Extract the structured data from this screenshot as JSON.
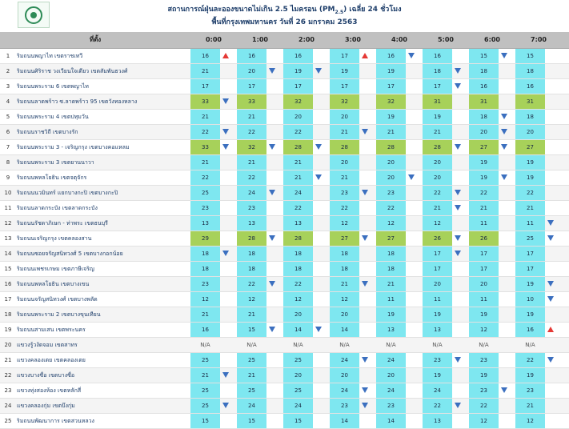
{
  "header": {
    "title_main": "สถานการณ์ฝุ่นละอองขนาดไม่เกิน 2.5 ไมครอน (PM",
    "title_sub": "2.5",
    "title_end": ") เฉลี่ย 24 ชั่วโมง",
    "subtitle": "พื้นที่กรุงเทพมหานคร วันที่ 26 มกราคม 2563",
    "logo_icon": "bma-seal-icon"
  },
  "table": {
    "place_header": "ที่ตั้ง",
    "hours": [
      "0:00",
      "1:00",
      "2:00",
      "3:00",
      "4:00",
      "5:00",
      "6:00",
      "7:00"
    ],
    "colors": {
      "cyan": "#7ee7f0",
      "green": "#a7d15a",
      "down_arrow": "#3b6fbf",
      "up_arrow": "#e53935"
    },
    "rows": [
      {
        "num": "1",
        "place": "ริมถนนพญาไท เขตราชเทวี",
        "cells": [
          {
            "v": "16",
            "a": "up"
          },
          {
            "v": "16",
            "a": ""
          },
          {
            "v": "16",
            "a": ""
          },
          {
            "v": "17",
            "a": "up"
          },
          {
            "v": "16",
            "a": "down"
          },
          {
            "v": "16",
            "a": ""
          },
          {
            "v": "15",
            "a": "down"
          },
          {
            "v": "15",
            "a": ""
          }
        ]
      },
      {
        "num": "2",
        "place": "ริมถนนศิริราช วงเวียนใจเดียว เขตสัมพันธวงศ์",
        "cells": [
          {
            "v": "21",
            "a": ""
          },
          {
            "v": "20",
            "a": "down"
          },
          {
            "v": "19",
            "a": "down"
          },
          {
            "v": "19",
            "a": ""
          },
          {
            "v": "19",
            "a": ""
          },
          {
            "v": "18",
            "a": "down"
          },
          {
            "v": "18",
            "a": ""
          },
          {
            "v": "18",
            "a": ""
          }
        ]
      },
      {
        "num": "3",
        "place": "ริมถนนพระราม 6 เขตพญาไท",
        "cells": [
          {
            "v": "17",
            "a": ""
          },
          {
            "v": "17",
            "a": ""
          },
          {
            "v": "17",
            "a": ""
          },
          {
            "v": "17",
            "a": ""
          },
          {
            "v": "17",
            "a": ""
          },
          {
            "v": "17",
            "a": "down"
          },
          {
            "v": "16",
            "a": ""
          },
          {
            "v": "16",
            "a": ""
          }
        ]
      },
      {
        "num": "4",
        "place": "ริมถนนลาดพร้าว ซ.ลาดพร้าว 95 เขตวังทองหลาง",
        "cells": [
          {
            "v": "33",
            "a": "down"
          },
          {
            "v": "33",
            "a": ""
          },
          {
            "v": "32",
            "a": ""
          },
          {
            "v": "32",
            "a": ""
          },
          {
            "v": "32",
            "a": ""
          },
          {
            "v": "31",
            "a": ""
          },
          {
            "v": "31",
            "a": ""
          },
          {
            "v": "31",
            "a": ""
          }
        ]
      },
      {
        "num": "5",
        "place": "ริมถนนพระราม 4 เขตปทุมวัน",
        "cells": [
          {
            "v": "21",
            "a": ""
          },
          {
            "v": "21",
            "a": ""
          },
          {
            "v": "20",
            "a": ""
          },
          {
            "v": "20",
            "a": ""
          },
          {
            "v": "19",
            "a": ""
          },
          {
            "v": "19",
            "a": ""
          },
          {
            "v": "18",
            "a": "down"
          },
          {
            "v": "18",
            "a": ""
          }
        ]
      },
      {
        "num": "6",
        "place": "ริมถนนราชวิถี เขตบางรัก",
        "cells": [
          {
            "v": "22",
            "a": "down"
          },
          {
            "v": "22",
            "a": ""
          },
          {
            "v": "22",
            "a": ""
          },
          {
            "v": "21",
            "a": "down"
          },
          {
            "v": "21",
            "a": ""
          },
          {
            "v": "21",
            "a": ""
          },
          {
            "v": "20",
            "a": "down"
          },
          {
            "v": "20",
            "a": ""
          }
        ]
      },
      {
        "num": "7",
        "place": "ริมถนนพระราม 3 - เจริญกรุง เขตบางคอแหลม",
        "cells": [
          {
            "v": "33",
            "a": "down"
          },
          {
            "v": "32",
            "a": "down"
          },
          {
            "v": "28",
            "a": "down"
          },
          {
            "v": "28",
            "a": ""
          },
          {
            "v": "28",
            "a": ""
          },
          {
            "v": "28",
            "a": "down"
          },
          {
            "v": "27",
            "a": "down"
          },
          {
            "v": "27",
            "a": ""
          }
        ]
      },
      {
        "num": "8",
        "place": "ริมถนนพระราม 3 เขตยานนาวา",
        "cells": [
          {
            "v": "21",
            "a": ""
          },
          {
            "v": "21",
            "a": ""
          },
          {
            "v": "21",
            "a": ""
          },
          {
            "v": "20",
            "a": ""
          },
          {
            "v": "20",
            "a": ""
          },
          {
            "v": "20",
            "a": ""
          },
          {
            "v": "19",
            "a": ""
          },
          {
            "v": "19",
            "a": ""
          }
        ]
      },
      {
        "num": "9",
        "place": "ริมถนนพหลโยธิน เขตจตุจักร",
        "cells": [
          {
            "v": "22",
            "a": ""
          },
          {
            "v": "22",
            "a": ""
          },
          {
            "v": "21",
            "a": "down"
          },
          {
            "v": "21",
            "a": ""
          },
          {
            "v": "20",
            "a": "down"
          },
          {
            "v": "20",
            "a": ""
          },
          {
            "v": "19",
            "a": "down"
          },
          {
            "v": "19",
            "a": ""
          }
        ]
      },
      {
        "num": "10",
        "place": "ริมถนนนวมินทร์ แยกบางกะปิ เขตบางกะปิ",
        "cells": [
          {
            "v": "25",
            "a": ""
          },
          {
            "v": "24",
            "a": "down"
          },
          {
            "v": "24",
            "a": ""
          },
          {
            "v": "23",
            "a": "down"
          },
          {
            "v": "23",
            "a": ""
          },
          {
            "v": "22",
            "a": "down"
          },
          {
            "v": "22",
            "a": ""
          },
          {
            "v": "22",
            "a": ""
          }
        ]
      },
      {
        "num": "11",
        "place": "ริมถนนลาดกระบัง เขตลาดกระบัง",
        "cells": [
          {
            "v": "23",
            "a": ""
          },
          {
            "v": "23",
            "a": ""
          },
          {
            "v": "22",
            "a": ""
          },
          {
            "v": "22",
            "a": ""
          },
          {
            "v": "22",
            "a": ""
          },
          {
            "v": "21",
            "a": "down"
          },
          {
            "v": "21",
            "a": ""
          },
          {
            "v": "21",
            "a": ""
          }
        ]
      },
      {
        "num": "12",
        "place": "ริมถนนรัชดาภิเษก - ท่าพระ เขตธนบุรี",
        "cells": [
          {
            "v": "13",
            "a": ""
          },
          {
            "v": "13",
            "a": ""
          },
          {
            "v": "13",
            "a": ""
          },
          {
            "v": "12",
            "a": ""
          },
          {
            "v": "12",
            "a": ""
          },
          {
            "v": "12",
            "a": ""
          },
          {
            "v": "11",
            "a": ""
          },
          {
            "v": "11",
            "a": "down"
          }
        ]
      },
      {
        "num": "13",
        "place": "ริมถนนเจริญกรุง เขตคลองสาน",
        "cells": [
          {
            "v": "29",
            "a": ""
          },
          {
            "v": "28",
            "a": "down"
          },
          {
            "v": "28",
            "a": ""
          },
          {
            "v": "27",
            "a": "down"
          },
          {
            "v": "27",
            "a": ""
          },
          {
            "v": "26",
            "a": "down"
          },
          {
            "v": "26",
            "a": ""
          },
          {
            "v": "25",
            "a": "down"
          }
        ]
      },
      {
        "num": "14",
        "place": "ริมถนนซอยจรัญสนิทวงศ์ 5 เขตบางกอกน้อย",
        "cells": [
          {
            "v": "18",
            "a": "down"
          },
          {
            "v": "18",
            "a": ""
          },
          {
            "v": "18",
            "a": ""
          },
          {
            "v": "18",
            "a": ""
          },
          {
            "v": "18",
            "a": ""
          },
          {
            "v": "17",
            "a": "down"
          },
          {
            "v": "17",
            "a": ""
          },
          {
            "v": "17",
            "a": ""
          }
        ]
      },
      {
        "num": "15",
        "place": "ริมถนนเพชรเกษม เขตภาษีเจริญ",
        "cells": [
          {
            "v": "18",
            "a": ""
          },
          {
            "v": "18",
            "a": ""
          },
          {
            "v": "18",
            "a": ""
          },
          {
            "v": "18",
            "a": ""
          },
          {
            "v": "18",
            "a": ""
          },
          {
            "v": "17",
            "a": ""
          },
          {
            "v": "17",
            "a": ""
          },
          {
            "v": "17",
            "a": ""
          }
        ]
      },
      {
        "num": "16",
        "place": "ริมถนนพหลโยธิน เขตบางเขน",
        "cells": [
          {
            "v": "23",
            "a": ""
          },
          {
            "v": "22",
            "a": "down"
          },
          {
            "v": "22",
            "a": ""
          },
          {
            "v": "21",
            "a": "down"
          },
          {
            "v": "21",
            "a": ""
          },
          {
            "v": "20",
            "a": ""
          },
          {
            "v": "20",
            "a": ""
          },
          {
            "v": "19",
            "a": "down"
          }
        ]
      },
      {
        "num": "17",
        "place": "ริมถนนจรัญสนิทวงศ์ เขตบางพลัด",
        "cells": [
          {
            "v": "12",
            "a": ""
          },
          {
            "v": "12",
            "a": ""
          },
          {
            "v": "12",
            "a": ""
          },
          {
            "v": "12",
            "a": ""
          },
          {
            "v": "11",
            "a": ""
          },
          {
            "v": "11",
            "a": ""
          },
          {
            "v": "11",
            "a": ""
          },
          {
            "v": "10",
            "a": "down"
          }
        ]
      },
      {
        "num": "18",
        "place": "ริมถนนพระราม 2 เขตบางขุนเทียน",
        "cells": [
          {
            "v": "21",
            "a": ""
          },
          {
            "v": "21",
            "a": ""
          },
          {
            "v": "20",
            "a": ""
          },
          {
            "v": "20",
            "a": ""
          },
          {
            "v": "19",
            "a": ""
          },
          {
            "v": "19",
            "a": ""
          },
          {
            "v": "19",
            "a": ""
          },
          {
            "v": "19",
            "a": ""
          }
        ]
      },
      {
        "num": "19",
        "place": "ริมถนนสามเสน เขตพระนคร",
        "cells": [
          {
            "v": "16",
            "a": ""
          },
          {
            "v": "15",
            "a": "down"
          },
          {
            "v": "14",
            "a": "down"
          },
          {
            "v": "14",
            "a": ""
          },
          {
            "v": "13",
            "a": ""
          },
          {
            "v": "13",
            "a": ""
          },
          {
            "v": "12",
            "a": ""
          },
          {
            "v": "16",
            "a": "up"
          }
        ]
      },
      {
        "num": "20",
        "place": "แขวงรู้วงัดจอม เขตสาทร",
        "cells": [
          {
            "v": "N/A",
            "a": ""
          },
          {
            "v": "N/A",
            "a": ""
          },
          {
            "v": "N/A",
            "a": ""
          },
          {
            "v": "N/A",
            "a": ""
          },
          {
            "v": "N/A",
            "a": ""
          },
          {
            "v": "N/A",
            "a": ""
          },
          {
            "v": "N/A",
            "a": ""
          },
          {
            "v": "N/A",
            "a": ""
          }
        ]
      },
      {
        "num": "21",
        "place": "แขวงคลองเตย เขตคลองเตย",
        "cells": [
          {
            "v": "25",
            "a": ""
          },
          {
            "v": "25",
            "a": ""
          },
          {
            "v": "25",
            "a": ""
          },
          {
            "v": "24",
            "a": "down"
          },
          {
            "v": "24",
            "a": ""
          },
          {
            "v": "23",
            "a": "down"
          },
          {
            "v": "23",
            "a": ""
          },
          {
            "v": "22",
            "a": "down"
          }
        ]
      },
      {
        "num": "22",
        "place": "แขวงบางซื่อ เขตบางซื่อ",
        "cells": [
          {
            "v": "21",
            "a": "down"
          },
          {
            "v": "21",
            "a": ""
          },
          {
            "v": "20",
            "a": ""
          },
          {
            "v": "20",
            "a": ""
          },
          {
            "v": "20",
            "a": ""
          },
          {
            "v": "19",
            "a": ""
          },
          {
            "v": "19",
            "a": ""
          },
          {
            "v": "19",
            "a": ""
          }
        ]
      },
      {
        "num": "23",
        "place": "แขวงทุ่งสองห้อง เขตหลักสี่",
        "cells": [
          {
            "v": "25",
            "a": ""
          },
          {
            "v": "25",
            "a": ""
          },
          {
            "v": "25",
            "a": ""
          },
          {
            "v": "24",
            "a": "down"
          },
          {
            "v": "24",
            "a": ""
          },
          {
            "v": "24",
            "a": ""
          },
          {
            "v": "23",
            "a": "down"
          },
          {
            "v": "23",
            "a": ""
          }
        ]
      },
      {
        "num": "24",
        "place": "แขวงคลองกุ่ม เขตบึงกุ่ม",
        "cells": [
          {
            "v": "25",
            "a": "down"
          },
          {
            "v": "24",
            "a": ""
          },
          {
            "v": "24",
            "a": ""
          },
          {
            "v": "23",
            "a": "down"
          },
          {
            "v": "23",
            "a": ""
          },
          {
            "v": "22",
            "a": "down"
          },
          {
            "v": "22",
            "a": ""
          },
          {
            "v": "21",
            "a": ""
          }
        ]
      },
      {
        "num": "25",
        "place": "ริมถนนพัฒนาการ เขตสวนหลวง",
        "cells": [
          {
            "v": "15",
            "a": ""
          },
          {
            "v": "15",
            "a": ""
          },
          {
            "v": "15",
            "a": ""
          },
          {
            "v": "14",
            "a": ""
          },
          {
            "v": "14",
            "a": ""
          },
          {
            "v": "13",
            "a": ""
          },
          {
            "v": "12",
            "a": ""
          },
          {
            "v": "12",
            "a": ""
          }
        ]
      }
    ]
  }
}
